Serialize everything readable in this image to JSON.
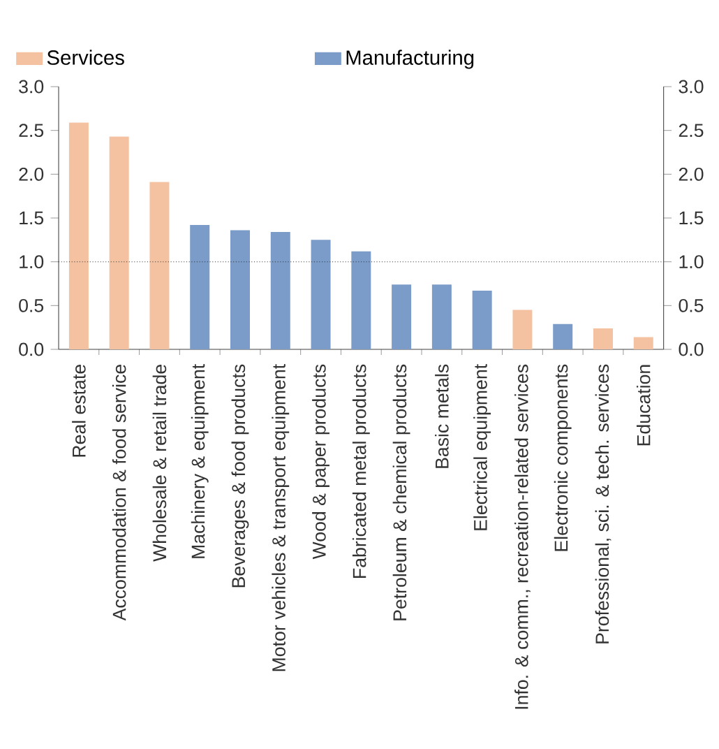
{
  "chart_data": {
    "type": "bar",
    "categories": [
      "Real estate",
      "Accommodation & food service",
      "Wholesale & retail trade",
      "Machinery & equipment",
      "Beverages & food products",
      "Motor vehicles & transport equipment",
      "Wood & paper products",
      "Fabricated metal products",
      "Petroleum & chemical products",
      "Basic metals",
      "Electrical equipment",
      "Info. & comm., recreation-related services",
      "Electronic components",
      "Professional, sci. & tech. services",
      "Education"
    ],
    "series": [
      {
        "name": "Services",
        "color": "#f4c2a1",
        "values": [
          2.59,
          2.43,
          1.91,
          null,
          null,
          null,
          null,
          null,
          null,
          null,
          null,
          0.45,
          null,
          0.24,
          0.14
        ]
      },
      {
        "name": "Manufacturing",
        "color": "#7b9cc9",
        "values": [
          null,
          null,
          null,
          1.42,
          1.36,
          1.34,
          1.25,
          1.12,
          0.74,
          0.74,
          0.67,
          null,
          0.29,
          null,
          null
        ]
      }
    ],
    "ylim": [
      0,
      3
    ],
    "yticks": [
      {
        "value": 0,
        "label": "0.0"
      },
      {
        "value": 0.5,
        "label": "0.5"
      },
      {
        "value": 1,
        "label": "1.0"
      },
      {
        "value": 1.5,
        "label": "1.5"
      },
      {
        "value": 2,
        "label": "2.0"
      },
      {
        "value": 2.5,
        "label": "2.5"
      },
      {
        "value": 3,
        "label": "3.0"
      }
    ],
    "y2lim": [
      0,
      3
    ],
    "y2ticks": [
      {
        "value": 0,
        "label": "0.0"
      },
      {
        "value": 0.5,
        "label": "0.5"
      },
      {
        "value": 1,
        "label": "1.0"
      },
      {
        "value": 1.5,
        "label": "1.5"
      },
      {
        "value": 2,
        "label": "2.0"
      },
      {
        "value": 2.5,
        "label": "2.5"
      },
      {
        "value": 3,
        "label": "3.0"
      }
    ],
    "ref_lines": [
      {
        "axis": "y",
        "value": 1,
        "line_style": "dotted"
      }
    ],
    "legend": "top",
    "grid": false
  }
}
